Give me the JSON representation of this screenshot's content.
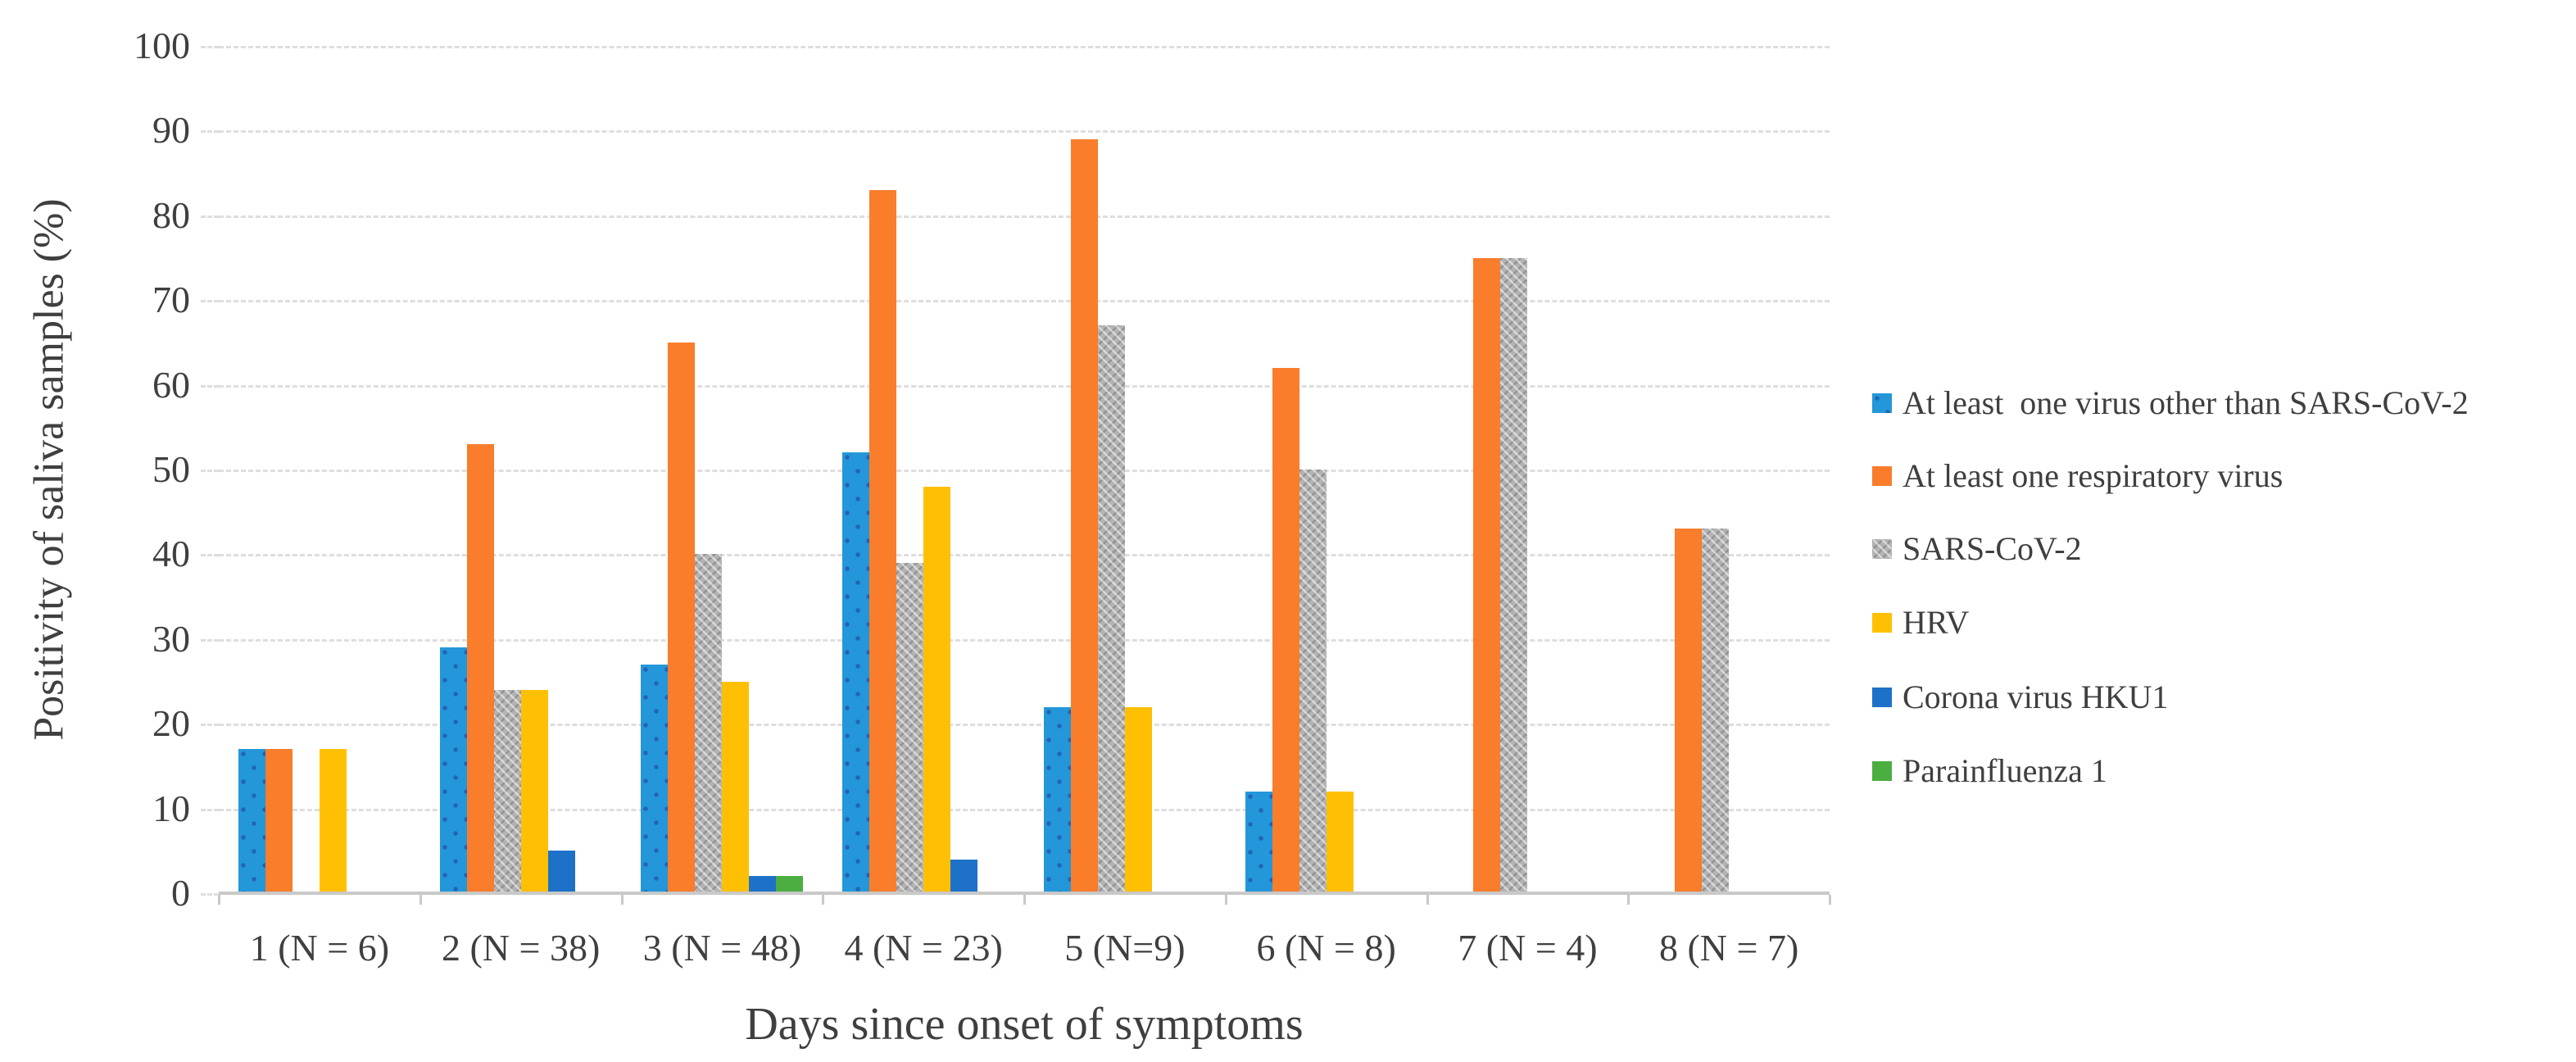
{
  "chart_data": {
    "type": "bar",
    "title": "",
    "xlabel": "Days since onset of symptoms",
    "ylabel": "Positivity of saliva samples (%)",
    "ylim": [
      0,
      100
    ],
    "yticks": [
      0,
      10,
      20,
      30,
      40,
      50,
      60,
      70,
      80,
      90,
      100
    ],
    "grid": "horizontal-dashed",
    "legend_position": "right",
    "categories": [
      "1 (N = 6)",
      "2 (N = 38)",
      "3 (N = 48)",
      "4 (N = 23)",
      "5 (N=9)",
      "6 (N = 8)",
      "7 (N = 4)",
      "8 (N = 7)"
    ],
    "series": [
      {
        "name": "At least  one virus other than SARS-CoV-2",
        "color": "#2397d9",
        "pattern": "dots",
        "values": [
          17,
          29,
          27,
          52,
          22,
          12,
          0,
          0
        ]
      },
      {
        "name": "At least one respiratory virus",
        "color": "#f97d2b",
        "pattern": "solid",
        "values": [
          17,
          53,
          65,
          83,
          89,
          62,
          75,
          43
        ]
      },
      {
        "name": "SARS-CoV-2",
        "color": "#b3b3b3",
        "pattern": "weave",
        "values": [
          0,
          24,
          40,
          39,
          67,
          50,
          75,
          43
        ]
      },
      {
        "name": "HRV",
        "color": "#ffc003",
        "pattern": "solid",
        "values": [
          17,
          24,
          25,
          48,
          22,
          12,
          0,
          0
        ]
      },
      {
        "name": "Corona virus HKU1",
        "color": "#1e71c8",
        "pattern": "solid",
        "values": [
          0,
          5,
          2,
          4,
          0,
          0,
          0,
          0
        ]
      },
      {
        "name": "Parainfluenza 1",
        "color": "#4cad41",
        "pattern": "solid",
        "values": [
          0,
          0,
          2,
          0,
          0,
          0,
          0,
          0
        ]
      }
    ],
    "colors": {
      "gridline": "#dedede",
      "axis_line": "#c9c9c9",
      "text": "#3f3f3f"
    }
  }
}
